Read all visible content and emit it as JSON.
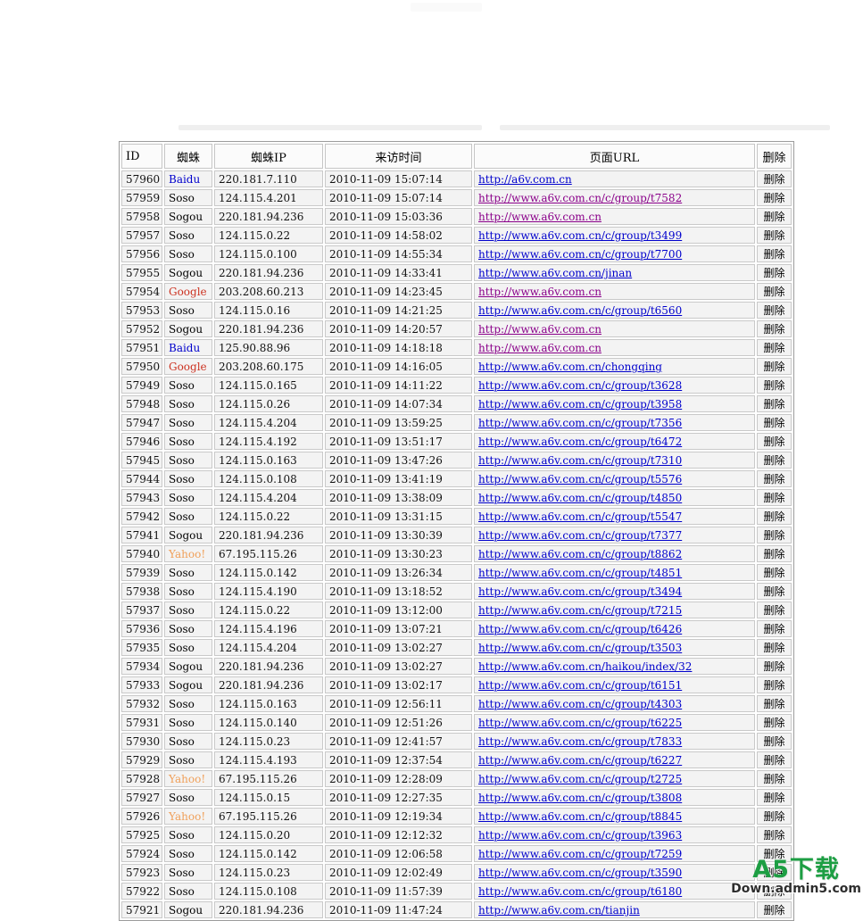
{
  "table": {
    "headers": [
      "ID",
      "蜘蛛",
      "蜘蛛IP",
      "来访时间",
      "页面URL",
      "删除"
    ],
    "delete_label": "删除",
    "rows": [
      {
        "id": "57960",
        "spider": "Baidu",
        "ip": "220.181.7.110",
        "time": "2010-11-09 15:07:14",
        "url": "http://a6v.com.cn",
        "visited": false
      },
      {
        "id": "57959",
        "spider": "Soso",
        "ip": "124.115.4.201",
        "time": "2010-11-09 15:07:14",
        "url": "http://www.a6v.com.cn/c/group/t7582",
        "visited": true
      },
      {
        "id": "57958",
        "spider": "Sogou",
        "ip": "220.181.94.236",
        "time": "2010-11-09 15:03:36",
        "url": "http://www.a6v.com.cn",
        "visited": true
      },
      {
        "id": "57957",
        "spider": "Soso",
        "ip": "124.115.0.22",
        "time": "2010-11-09 14:58:02",
        "url": "http://www.a6v.com.cn/c/group/t3499",
        "visited": false
      },
      {
        "id": "57956",
        "spider": "Soso",
        "ip": "124.115.0.100",
        "time": "2010-11-09 14:55:34",
        "url": "http://www.a6v.com.cn/c/group/t7700",
        "visited": false
      },
      {
        "id": "57955",
        "spider": "Sogou",
        "ip": "220.181.94.236",
        "time": "2010-11-09 14:33:41",
        "url": "http://www.a6v.com.cn/jinan",
        "visited": false
      },
      {
        "id": "57954",
        "spider": "Google",
        "ip": "203.208.60.213",
        "time": "2010-11-09 14:23:45",
        "url": "http://www.a6v.com.cn",
        "visited": true
      },
      {
        "id": "57953",
        "spider": "Soso",
        "ip": "124.115.0.16",
        "time": "2010-11-09 14:21:25",
        "url": "http://www.a6v.com.cn/c/group/t6560",
        "visited": false
      },
      {
        "id": "57952",
        "spider": "Sogou",
        "ip": "220.181.94.236",
        "time": "2010-11-09 14:20:57",
        "url": "http://www.a6v.com.cn",
        "visited": true
      },
      {
        "id": "57951",
        "spider": "Baidu",
        "ip": "125.90.88.96",
        "time": "2010-11-09 14:18:18",
        "url": "http://www.a6v.com.cn",
        "visited": true
      },
      {
        "id": "57950",
        "spider": "Google",
        "ip": "203.208.60.175",
        "time": "2010-11-09 14:16:05",
        "url": "http://www.a6v.com.cn/chongqing",
        "visited": false
      },
      {
        "id": "57949",
        "spider": "Soso",
        "ip": "124.115.0.165",
        "time": "2010-11-09 14:11:22",
        "url": "http://www.a6v.com.cn/c/group/t3628",
        "visited": false
      },
      {
        "id": "57948",
        "spider": "Soso",
        "ip": "124.115.0.26",
        "time": "2010-11-09 14:07:34",
        "url": "http://www.a6v.com.cn/c/group/t3958",
        "visited": false
      },
      {
        "id": "57947",
        "spider": "Soso",
        "ip": "124.115.4.204",
        "time": "2010-11-09 13:59:25",
        "url": "http://www.a6v.com.cn/c/group/t7356",
        "visited": false
      },
      {
        "id": "57946",
        "spider": "Soso",
        "ip": "124.115.4.192",
        "time": "2010-11-09 13:51:17",
        "url": "http://www.a6v.com.cn/c/group/t6472",
        "visited": false
      },
      {
        "id": "57945",
        "spider": "Soso",
        "ip": "124.115.0.163",
        "time": "2010-11-09 13:47:26",
        "url": "http://www.a6v.com.cn/c/group/t7310",
        "visited": false
      },
      {
        "id": "57944",
        "spider": "Soso",
        "ip": "124.115.0.108",
        "time": "2010-11-09 13:41:19",
        "url": "http://www.a6v.com.cn/c/group/t5576",
        "visited": false
      },
      {
        "id": "57943",
        "spider": "Soso",
        "ip": "124.115.4.204",
        "time": "2010-11-09 13:38:09",
        "url": "http://www.a6v.com.cn/c/group/t4850",
        "visited": false
      },
      {
        "id": "57942",
        "spider": "Soso",
        "ip": "124.115.0.22",
        "time": "2010-11-09 13:31:15",
        "url": "http://www.a6v.com.cn/c/group/t5547",
        "visited": false
      },
      {
        "id": "57941",
        "spider": "Sogou",
        "ip": "220.181.94.236",
        "time": "2010-11-09 13:30:39",
        "url": "http://www.a6v.com.cn/c/group/t7377",
        "visited": false
      },
      {
        "id": "57940",
        "spider": "Yahoo!",
        "ip": "67.195.115.26",
        "time": "2010-11-09 13:30:23",
        "url": "http://www.a6v.com.cn/c/group/t8862",
        "visited": false
      },
      {
        "id": "57939",
        "spider": "Soso",
        "ip": "124.115.0.142",
        "time": "2010-11-09 13:26:34",
        "url": "http://www.a6v.com.cn/c/group/t4851",
        "visited": false
      },
      {
        "id": "57938",
        "spider": "Soso",
        "ip": "124.115.4.190",
        "time": "2010-11-09 13:18:52",
        "url": "http://www.a6v.com.cn/c/group/t3494",
        "visited": false
      },
      {
        "id": "57937",
        "spider": "Soso",
        "ip": "124.115.0.22",
        "time": "2010-11-09 13:12:00",
        "url": "http://www.a6v.com.cn/c/group/t7215",
        "visited": false
      },
      {
        "id": "57936",
        "spider": "Soso",
        "ip": "124.115.4.196",
        "time": "2010-11-09 13:07:21",
        "url": "http://www.a6v.com.cn/c/group/t6426",
        "visited": false
      },
      {
        "id": "57935",
        "spider": "Soso",
        "ip": "124.115.4.204",
        "time": "2010-11-09 13:02:27",
        "url": "http://www.a6v.com.cn/c/group/t3503",
        "visited": false
      },
      {
        "id": "57934",
        "spider": "Sogou",
        "ip": "220.181.94.236",
        "time": "2010-11-09 13:02:27",
        "url": "http://www.a6v.com.cn/haikou/index/32",
        "visited": false
      },
      {
        "id": "57933",
        "spider": "Sogou",
        "ip": "220.181.94.236",
        "time": "2010-11-09 13:02:17",
        "url": "http://www.a6v.com.cn/c/group/t6151",
        "visited": false
      },
      {
        "id": "57932",
        "spider": "Soso",
        "ip": "124.115.0.163",
        "time": "2010-11-09 12:56:11",
        "url": "http://www.a6v.com.cn/c/group/t4303",
        "visited": false
      },
      {
        "id": "57931",
        "spider": "Soso",
        "ip": "124.115.0.140",
        "time": "2010-11-09 12:51:26",
        "url": "http://www.a6v.com.cn/c/group/t6225",
        "visited": false
      },
      {
        "id": "57930",
        "spider": "Soso",
        "ip": "124.115.0.23",
        "time": "2010-11-09 12:41:57",
        "url": "http://www.a6v.com.cn/c/group/t7833",
        "visited": false
      },
      {
        "id": "57929",
        "spider": "Soso",
        "ip": "124.115.4.193",
        "time": "2010-11-09 12:37:54",
        "url": "http://www.a6v.com.cn/c/group/t6227",
        "visited": false
      },
      {
        "id": "57928",
        "spider": "Yahoo!",
        "ip": "67.195.115.26",
        "time": "2010-11-09 12:28:09",
        "url": "http://www.a6v.com.cn/c/group/t2725",
        "visited": false
      },
      {
        "id": "57927",
        "spider": "Soso",
        "ip": "124.115.0.15",
        "time": "2010-11-09 12:27:35",
        "url": "http://www.a6v.com.cn/c/group/t3808",
        "visited": false
      },
      {
        "id": "57926",
        "spider": "Yahoo!",
        "ip": "67.195.115.26",
        "time": "2010-11-09 12:19:34",
        "url": "http://www.a6v.com.cn/c/group/t8845",
        "visited": false
      },
      {
        "id": "57925",
        "spider": "Soso",
        "ip": "124.115.0.20",
        "time": "2010-11-09 12:12:32",
        "url": "http://www.a6v.com.cn/c/group/t3963",
        "visited": false
      },
      {
        "id": "57924",
        "spider": "Soso",
        "ip": "124.115.0.142",
        "time": "2010-11-09 12:06:58",
        "url": "http://www.a6v.com.cn/c/group/t7259",
        "visited": false
      },
      {
        "id": "57923",
        "spider": "Soso",
        "ip": "124.115.0.23",
        "time": "2010-11-09 12:02:49",
        "url": "http://www.a6v.com.cn/c/group/t3590",
        "visited": false
      },
      {
        "id": "57922",
        "spider": "Soso",
        "ip": "124.115.0.108",
        "time": "2010-11-09 11:57:39",
        "url": "http://www.a6v.com.cn/c/group/t6180",
        "visited": false
      },
      {
        "id": "57921",
        "spider": "Sogou",
        "ip": "220.181.94.236",
        "time": "2010-11-09 11:47:24",
        "url": "http://www.a6v.com.cn/tianjin",
        "visited": false
      }
    ]
  },
  "colors": {
    "link": "#0000cc",
    "link_visited": "#8a008a",
    "spiders": {
      "Baidu": "#0000cc",
      "Soso": "#000000",
      "Sogou": "#000000",
      "Google": "#cc3322",
      "Yahoo!": "#f0a05a"
    },
    "watermark_green": "#1d9e43"
  },
  "watermark": {
    "title": "A5下载",
    "subtitle": "Down.admin5.com"
  }
}
